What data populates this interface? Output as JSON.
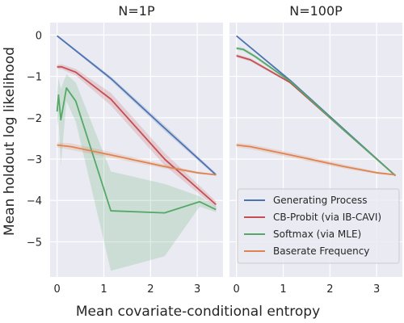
{
  "chart_data": {
    "type": "line",
    "xlabel": "Mean covariate-conditional entropy",
    "ylabel": "Mean holdout log likelihood",
    "xlim": [
      -0.15,
      3.55
    ],
    "ylim": [
      -5.85,
      0.3
    ],
    "xticks": [
      0,
      1,
      2,
      3
    ],
    "yticks": [
      0,
      -1,
      -2,
      -3,
      -4,
      -5
    ],
    "grid": true,
    "legend": {
      "position": "lower-right",
      "panel": 1,
      "entries": [
        "Generating Process",
        "CB-Probit (via IB-CAVI)",
        "Softmax (via MLE)",
        "Baserate Frequency"
      ]
    },
    "colors": {
      "Generating Process": "#4c72b0",
      "CB-Probit (via IB-CAVI)": "#c44e52",
      "Softmax (via MLE)": "#55a868",
      "Baserate Frequency": "#dd8452"
    },
    "panels": [
      {
        "title": "N=1P",
        "series": [
          {
            "name": "Generating Process",
            "x": [
              0.0,
              1.15,
              2.3,
              3.4
            ],
            "y": [
              -0.02,
              -1.05,
              -2.25,
              -3.38
            ],
            "lower": [
              -0.04,
              -1.1,
              -2.32,
              -3.42
            ],
            "upper": [
              0.0,
              -1.0,
              -2.18,
              -3.34
            ]
          },
          {
            "name": "CB-Probit (via IB-CAVI)",
            "x": [
              0.0,
              0.1,
              0.4,
              1.15,
              2.3,
              3.4
            ],
            "y": [
              -0.77,
              -0.77,
              -0.9,
              -1.55,
              -3.0,
              -4.1
            ],
            "lower": [
              -0.82,
              -0.83,
              -0.98,
              -1.7,
              -3.15,
              -4.18
            ],
            "upper": [
              -0.72,
              -0.71,
              -0.82,
              -1.4,
              -2.85,
              -4.02
            ]
          },
          {
            "name": "Softmax (via MLE)",
            "x": [
              0.0,
              0.03,
              0.08,
              0.2,
              0.4,
              1.15,
              2.3,
              3.05,
              3.4
            ],
            "y": [
              -1.85,
              -1.45,
              -2.05,
              -1.28,
              -1.6,
              -4.25,
              -4.3,
              -4.03,
              -4.22
            ],
            "lower": [
              -2.2,
              -2.0,
              -3.15,
              -1.6,
              -2.1,
              -5.7,
              -5.35,
              -4.15,
              -4.28
            ],
            "upper": [
              -1.4,
              -1.05,
              -1.3,
              -0.95,
              -1.15,
              -3.3,
              -3.6,
              -3.9,
              -4.15
            ]
          },
          {
            "name": "Baserate Frequency",
            "x": [
              0.0,
              0.3,
              1.15,
              2.3,
              3.0,
              3.4
            ],
            "y": [
              -2.66,
              -2.7,
              -2.9,
              -3.18,
              -3.33,
              -3.38
            ],
            "lower": [
              -2.72,
              -2.78,
              -2.97,
              -3.23,
              -3.36,
              -3.4
            ],
            "upper": [
              -2.6,
              -2.62,
              -2.83,
              -3.13,
              -3.3,
              -3.36
            ]
          }
        ]
      },
      {
        "title": "N=100P",
        "series": [
          {
            "name": "Generating Process",
            "x": [
              0.0,
              1.15,
              2.3,
              3.4
            ],
            "y": [
              -0.02,
              -1.1,
              -2.28,
              -3.4
            ],
            "lower": [
              -0.03,
              -1.13,
              -2.31,
              -3.42
            ],
            "upper": [
              -0.01,
              -1.07,
              -2.25,
              -3.38
            ]
          },
          {
            "name": "CB-Probit (via IB-CAVI)",
            "x": [
              0.0,
              0.3,
              1.15,
              2.3,
              3.4
            ],
            "y": [
              -0.5,
              -0.6,
              -1.15,
              -2.3,
              -3.4
            ],
            "lower": [
              -0.54,
              -0.64,
              -1.18,
              -2.33,
              -3.42
            ],
            "upper": [
              -0.46,
              -0.56,
              -1.12,
              -2.27,
              -3.38
            ]
          },
          {
            "name": "Softmax (via MLE)",
            "x": [
              0.0,
              0.15,
              0.4,
              1.15,
              2.3,
              3.4
            ],
            "y": [
              -0.32,
              -0.35,
              -0.52,
              -1.12,
              -2.3,
              -3.4
            ],
            "lower": [
              -0.36,
              -0.39,
              -0.56,
              -1.15,
              -2.33,
              -3.42
            ],
            "upper": [
              -0.28,
              -0.31,
              -0.48,
              -1.09,
              -2.27,
              -3.38
            ]
          },
          {
            "name": "Baserate Frequency",
            "x": [
              0.0,
              0.3,
              1.15,
              2.3,
              3.0,
              3.4
            ],
            "y": [
              -2.66,
              -2.7,
              -2.9,
              -3.18,
              -3.33,
              -3.38
            ],
            "lower": [
              -2.71,
              -2.76,
              -2.96,
              -3.23,
              -3.36,
              -3.4
            ],
            "upper": [
              -2.61,
              -2.64,
              -2.84,
              -3.13,
              -3.3,
              -3.36
            ]
          }
        ]
      }
    ]
  }
}
